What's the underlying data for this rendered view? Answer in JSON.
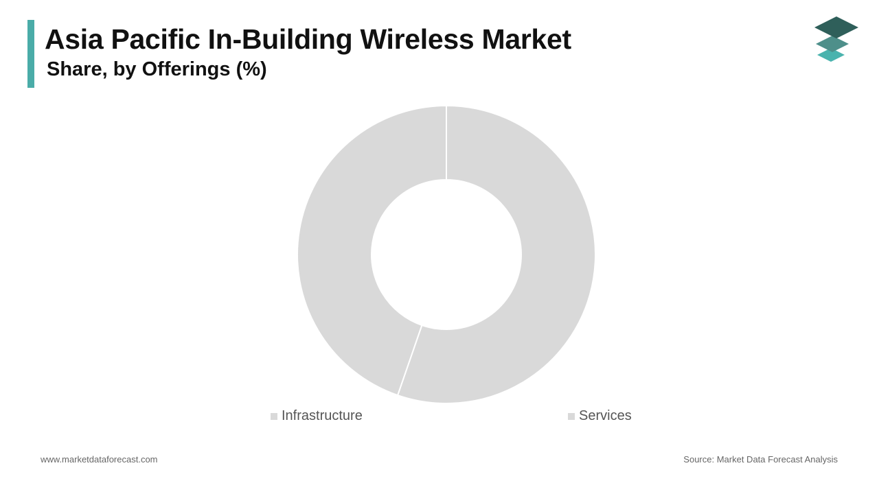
{
  "header": {
    "title": "Asia Pacific In-Building Wireless Market",
    "subtitle": "Share, by Offerings (%)",
    "accent_color": "#4aaca8"
  },
  "logo": {
    "icon": "stacked-layers-logo-icon",
    "colors": [
      "#2f5f5a",
      "#4e8f8a",
      "#4ab3ae"
    ]
  },
  "chart_data": {
    "type": "pie",
    "variant": "donut",
    "title": "Asia Pacific In-Building Wireless Market",
    "subtitle": "Share, by Offerings (%)",
    "categories": [
      "Infrastructure",
      "Services"
    ],
    "values": [
      44.7,
      55.3
    ],
    "colors": [
      "#d9d9d9",
      "#d9d9d9"
    ],
    "start_angle_deg": 0,
    "direction": "clockwise",
    "legend": "bottom"
  },
  "legend": {
    "items": [
      {
        "label": "Infrastructure",
        "color": "#d9d9d9"
      },
      {
        "label": "Services",
        "color": "#d9d9d9"
      }
    ]
  },
  "footer": {
    "website": "www.marketdataforecast.com",
    "source": "Source: Market Data Forecast Analysis"
  }
}
